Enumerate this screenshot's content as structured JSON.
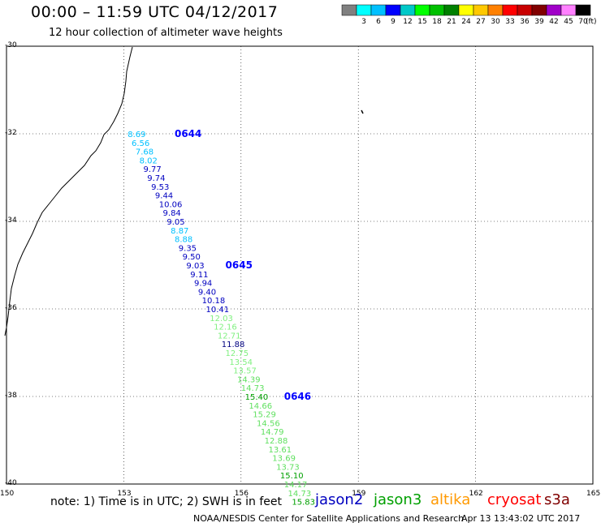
{
  "header": {
    "title": "00:00 – 11:59 UTC 04/12/2017",
    "subtitle": "12 hour collection of altimeter wave heights"
  },
  "legend": {
    "unit": "(ft)",
    "bins": [
      {
        "label": "",
        "color": "#808080"
      },
      {
        "label": "3",
        "color": "#00ffff"
      },
      {
        "label": "6",
        "color": "#00c0ff"
      },
      {
        "label": "9",
        "color": "#0000ff"
      },
      {
        "label": "12",
        "color": "#00c8c8"
      },
      {
        "label": "15",
        "color": "#00ff00"
      },
      {
        "label": "18",
        "color": "#00c000"
      },
      {
        "label": "21",
        "color": "#008000"
      },
      {
        "label": "24",
        "color": "#ffff00"
      },
      {
        "label": "27",
        "color": "#ffc800"
      },
      {
        "label": "30",
        "color": "#ff8000"
      },
      {
        "label": "33",
        "color": "#ff0000"
      },
      {
        "label": "36",
        "color": "#c80000"
      },
      {
        "label": "39",
        "color": "#800000"
      },
      {
        "label": "42",
        "color": "#a000c8"
      },
      {
        "label": "45",
        "color": "#ff80ff"
      },
      {
        "label": "70",
        "color": "#000000"
      }
    ]
  },
  "axes": {
    "lat_labels": [
      "-30",
      "-32",
      "-34",
      "-36",
      "-38",
      "-40"
    ],
    "lon_labels": [
      "150",
      "153",
      "156",
      "159",
      "162",
      "165"
    ]
  },
  "track": {
    "times": [
      {
        "label": "0644",
        "lat": -32.0,
        "lon": 154.3,
        "color": "#0000ff"
      },
      {
        "label": "0645",
        "lat": -35.0,
        "lon": 155.6,
        "color": "#0000ff"
      },
      {
        "label": "0646",
        "lat": -38.0,
        "lon": 157.1,
        "color": "#0000ff"
      }
    ],
    "points": [
      {
        "v": "8.69",
        "lat": -32.0,
        "lon": 153.1,
        "c": "#00c0ff"
      },
      {
        "v": "6.56",
        "lat": -32.2,
        "lon": 153.2,
        "c": "#00c0ff"
      },
      {
        "v": "7.68",
        "lat": -32.4,
        "lon": 153.3,
        "c": "#00c0ff"
      },
      {
        "v": "8.02",
        "lat": -32.6,
        "lon": 153.4,
        "c": "#00c0ff"
      },
      {
        "v": "9.77",
        "lat": -32.8,
        "lon": 153.5,
        "c": "#0000c0"
      },
      {
        "v": "9.74",
        "lat": -33.0,
        "lon": 153.6,
        "c": "#0000c0"
      },
      {
        "v": "9.53",
        "lat": -33.2,
        "lon": 153.7,
        "c": "#0000c0"
      },
      {
        "v": "9.44",
        "lat": -33.4,
        "lon": 153.8,
        "c": "#0000c0"
      },
      {
        "v": "10.06",
        "lat": -33.6,
        "lon": 153.9,
        "c": "#0000c0"
      },
      {
        "v": "9.84",
        "lat": -33.8,
        "lon": 154.0,
        "c": "#0000c0"
      },
      {
        "v": "9.05",
        "lat": -34.0,
        "lon": 154.1,
        "c": "#0000c0"
      },
      {
        "v": "8.87",
        "lat": -34.2,
        "lon": 154.2,
        "c": "#00c0ff"
      },
      {
        "v": "8.88",
        "lat": -34.4,
        "lon": 154.3,
        "c": "#00c0ff"
      },
      {
        "v": "9.35",
        "lat": -34.6,
        "lon": 154.4,
        "c": "#0000c0"
      },
      {
        "v": "9.50",
        "lat": -34.8,
        "lon": 154.5,
        "c": "#0000c0"
      },
      {
        "v": "9.03",
        "lat": -35.0,
        "lon": 154.6,
        "c": "#0000c0"
      },
      {
        "v": "9.11",
        "lat": -35.2,
        "lon": 154.7,
        "c": "#0000c0"
      },
      {
        "v": "9.94",
        "lat": -35.4,
        "lon": 154.8,
        "c": "#0000c0"
      },
      {
        "v": "9.40",
        "lat": -35.6,
        "lon": 154.9,
        "c": "#0000c0"
      },
      {
        "v": "10.18",
        "lat": -35.8,
        "lon": 155.0,
        "c": "#0000c0"
      },
      {
        "v": "10.41",
        "lat": -36.0,
        "lon": 155.1,
        "c": "#0000c0"
      },
      {
        "v": "12.03",
        "lat": -36.2,
        "lon": 155.2,
        "c": "#80f080"
      },
      {
        "v": "12.16",
        "lat": -36.4,
        "lon": 155.3,
        "c": "#80f080"
      },
      {
        "v": "12.71",
        "lat": -36.6,
        "lon": 155.4,
        "c": "#80f080"
      },
      {
        "v": "11.88",
        "lat": -36.8,
        "lon": 155.5,
        "c": "#000080"
      },
      {
        "v": "12.75",
        "lat": -37.0,
        "lon": 155.6,
        "c": "#80f080"
      },
      {
        "v": "13.54",
        "lat": -37.2,
        "lon": 155.7,
        "c": "#80f080"
      },
      {
        "v": "13.57",
        "lat": -37.4,
        "lon": 155.8,
        "c": "#80f080"
      },
      {
        "v": "14.39",
        "lat": -37.6,
        "lon": 155.9,
        "c": "#60e060"
      },
      {
        "v": "14.73",
        "lat": -37.8,
        "lon": 156.0,
        "c": "#60e060"
      },
      {
        "v": "15.40",
        "lat": -38.0,
        "lon": 156.1,
        "c": "#00a000"
      },
      {
        "v": "14.66",
        "lat": -38.2,
        "lon": 156.2,
        "c": "#60e060"
      },
      {
        "v": "15.29",
        "lat": -38.4,
        "lon": 156.3,
        "c": "#60e060"
      },
      {
        "v": "14.56",
        "lat": -38.6,
        "lon": 156.4,
        "c": "#60e060"
      },
      {
        "v": "14.79",
        "lat": -38.8,
        "lon": 156.5,
        "c": "#60e060"
      },
      {
        "v": "12.88",
        "lat": -39.0,
        "lon": 156.6,
        "c": "#60e060"
      },
      {
        "v": "13.61",
        "lat": -39.2,
        "lon": 156.7,
        "c": "#60e060"
      },
      {
        "v": "13.69",
        "lat": -39.4,
        "lon": 156.8,
        "c": "#60e060"
      },
      {
        "v": "13.73",
        "lat": -39.6,
        "lon": 156.9,
        "c": "#60e060"
      },
      {
        "v": "15.10",
        "lat": -39.8,
        "lon": 157.0,
        "c": "#00a000"
      },
      {
        "v": "14.17",
        "lat": -40.0,
        "lon": 157.1,
        "c": "#60e060"
      },
      {
        "v": "14.73",
        "lat": -40.2,
        "lon": 157.2,
        "c": "#60e060"
      },
      {
        "v": "15.83",
        "lat": -40.4,
        "lon": 157.3,
        "c": "#00a000"
      }
    ]
  },
  "footer": {
    "note": "note: 1) Time is in UTC; 2) SWH is in feet",
    "satellites": [
      {
        "name": "jason2",
        "color": "#0000c0"
      },
      {
        "name": "jason3",
        "color": "#00a000"
      },
      {
        "name": "altika",
        "color": "#ff9900"
      },
      {
        "name": "cryosat",
        "color": "#ff0000"
      },
      {
        "name": "s3a",
        "color": "#800000"
      }
    ],
    "credit": "NOAA/NESDIS Center for Satellite Applications and Research",
    "timestamp": "Apr 13 13:43:02 UTC 2017"
  }
}
